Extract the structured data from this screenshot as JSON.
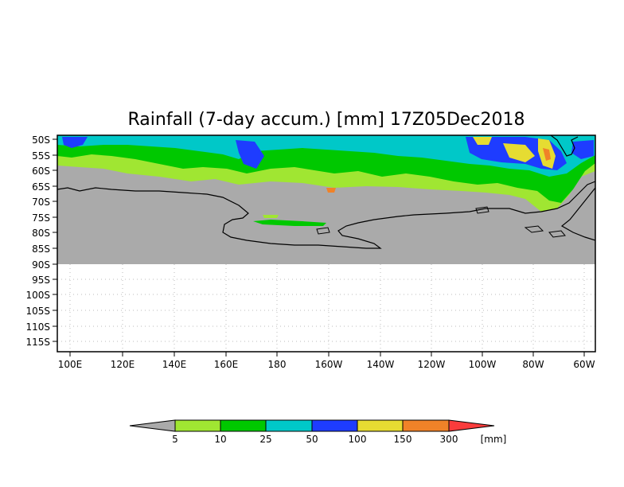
{
  "title": "Rainfall (7-day accum.) [mm] 17Z05Dec2018",
  "lat_labels": [
    "50S",
    "55S",
    "60S",
    "65S",
    "70S",
    "75S",
    "80S",
    "85S",
    "90S",
    "95S",
    "100S",
    "105S",
    "110S",
    "115S"
  ],
  "lon_labels": [
    "100E",
    "120E",
    "140E",
    "160E",
    "180",
    "160W",
    "140W",
    "120W",
    "100W",
    "80W",
    "60W"
  ],
  "colorbar": {
    "unit": "[mm]",
    "thresholds": [
      "5",
      "10",
      "25",
      "50",
      "100",
      "150",
      "300"
    ],
    "colors": {
      "below": "#aaaaaa",
      "c1": "#a0e632",
      "c2": "#00c800",
      "c3": "#00c8c8",
      "c4": "#1e3cff",
      "c5": "#e6dc32",
      "c6": "#f08228",
      "c7": "#fa3c3c"
    }
  },
  "map_colors": {
    "land": "#aaaaaa",
    "ocean_dry": "#aaaaaa",
    "no_data": "#ffffff"
  }
}
